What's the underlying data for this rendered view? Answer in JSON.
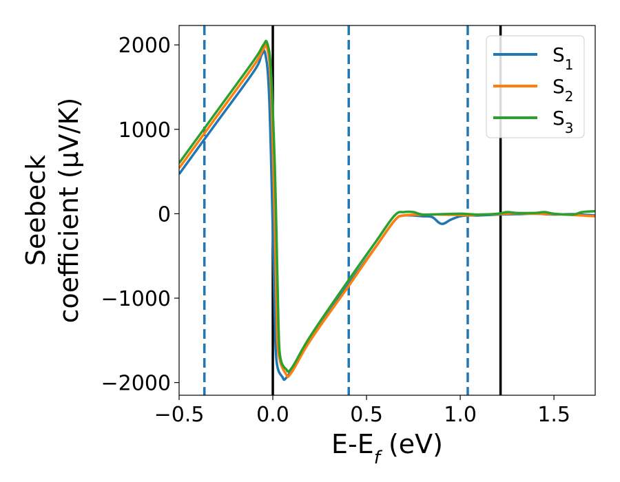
{
  "chart_data": {
    "type": "line",
    "xlabel": "E-E_f (eV)",
    "ylabel_line1": "Seebeck",
    "ylabel_line2": "coefficient  (μV/K)",
    "xlim": [
      -0.5,
      1.72
    ],
    "ylim": [
      -2150,
      2230
    ],
    "xticks": [
      -0.5,
      0.0,
      0.5,
      1.0,
      1.5
    ],
    "xtick_labels": [
      "−0.5",
      "0.0",
      "0.5",
      "1.0",
      "1.5"
    ],
    "yticks": [
      -2000,
      -1000,
      0,
      1000,
      2000
    ],
    "ytick_labels": [
      "−2000",
      "−1000",
      "0",
      "1000",
      "2000"
    ],
    "legend_position": "top-right",
    "vertical_lines": [
      {
        "x": -0.365,
        "style": "dashed",
        "color": "#1f77b4"
      },
      {
        "x": 0.0,
        "style": "solid",
        "color": "#000000"
      },
      {
        "x": 0.405,
        "style": "dashed",
        "color": "#1f77b4"
      },
      {
        "x": 1.04,
        "style": "dashed",
        "color": "#1f77b4"
      },
      {
        "x": 1.215,
        "style": "solid",
        "color": "#000000"
      }
    ],
    "series": [
      {
        "name": "S1",
        "color": "#1f77b4",
        "points": [
          [
            -0.5,
            470
          ],
          [
            -0.3,
            1080
          ],
          [
            -0.1,
            1690
          ],
          [
            -0.06,
            1880
          ],
          [
            -0.04,
            1890
          ],
          [
            -0.02,
            1400
          ],
          [
            0.0,
            -200
          ],
          [
            0.01,
            -1200
          ],
          [
            0.02,
            -1750
          ],
          [
            0.05,
            -1930
          ],
          [
            0.08,
            -1920
          ],
          [
            0.2,
            -1500
          ],
          [
            0.4,
            -850
          ],
          [
            0.55,
            -390
          ],
          [
            0.65,
            -80
          ],
          [
            0.7,
            -20
          ],
          [
            0.8,
            -30
          ],
          [
            0.85,
            -40
          ],
          [
            0.9,
            -120
          ],
          [
            0.95,
            -70
          ],
          [
            1.0,
            -30
          ],
          [
            1.05,
            -20
          ],
          [
            1.1,
            -20
          ],
          [
            1.2,
            -10
          ],
          [
            1.3,
            -5
          ],
          [
            1.4,
            0
          ],
          [
            1.5,
            -10
          ],
          [
            1.6,
            -5
          ],
          [
            1.72,
            -20
          ]
        ]
      },
      {
        "name": "S2",
        "color": "#ff7f0e",
        "points": [
          [
            -0.5,
            540
          ],
          [
            -0.3,
            1150
          ],
          [
            -0.1,
            1760
          ],
          [
            -0.05,
            1950
          ],
          [
            -0.03,
            1960
          ],
          [
            -0.01,
            1500
          ],
          [
            0.01,
            -100
          ],
          [
            0.02,
            -1100
          ],
          [
            0.03,
            -1650
          ],
          [
            0.07,
            -1900
          ],
          [
            0.1,
            -1880
          ],
          [
            0.2,
            -1500
          ],
          [
            0.4,
            -870
          ],
          [
            0.55,
            -390
          ],
          [
            0.65,
            -80
          ],
          [
            0.7,
            -20
          ],
          [
            0.8,
            -10
          ],
          [
            0.9,
            -10
          ],
          [
            1.0,
            -15
          ],
          [
            1.05,
            -20
          ],
          [
            1.1,
            -10
          ],
          [
            1.2,
            -5
          ],
          [
            1.3,
            5
          ],
          [
            1.4,
            0
          ],
          [
            1.5,
            -5
          ],
          [
            1.6,
            -15
          ],
          [
            1.72,
            -30
          ]
        ]
      },
      {
        "name": "S3",
        "color": "#2ca02c",
        "points": [
          [
            -0.5,
            600
          ],
          [
            -0.3,
            1210
          ],
          [
            -0.1,
            1820
          ],
          [
            -0.05,
            2000
          ],
          [
            -0.03,
            2020
          ],
          [
            -0.01,
            1700
          ],
          [
            0.01,
            600
          ],
          [
            0.02,
            -300
          ],
          [
            0.03,
            -1300
          ],
          [
            0.04,
            -1700
          ],
          [
            0.07,
            -1840
          ],
          [
            0.1,
            -1830
          ],
          [
            0.2,
            -1450
          ],
          [
            0.4,
            -800
          ],
          [
            0.55,
            -330
          ],
          [
            0.65,
            -20
          ],
          [
            0.7,
            20
          ],
          [
            0.75,
            20
          ],
          [
            0.8,
            -10
          ],
          [
            0.9,
            -5
          ],
          [
            1.0,
            0
          ],
          [
            1.1,
            -10
          ],
          [
            1.2,
            0
          ],
          [
            1.25,
            20
          ],
          [
            1.3,
            10
          ],
          [
            1.4,
            10
          ],
          [
            1.45,
            20
          ],
          [
            1.5,
            0
          ],
          [
            1.6,
            -10
          ],
          [
            1.65,
            20
          ],
          [
            1.72,
            30
          ]
        ]
      }
    ]
  },
  "legend": {
    "items": [
      {
        "base": "S",
        "sub": "1",
        "color": "#1f77b4"
      },
      {
        "base": "S",
        "sub": "2",
        "color": "#ff7f0e"
      },
      {
        "base": "S",
        "sub": "3",
        "color": "#2ca02c"
      }
    ]
  }
}
